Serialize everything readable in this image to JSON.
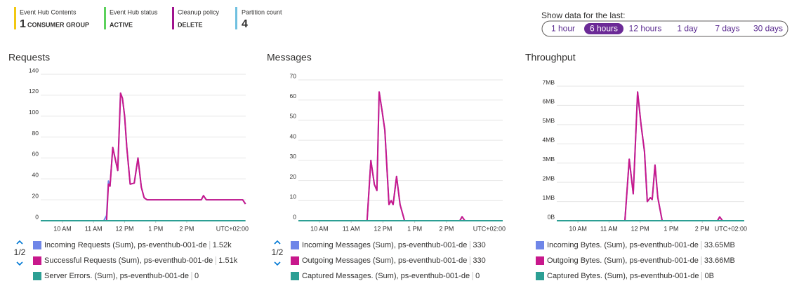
{
  "summary": [
    {
      "label": "Event Hub Contents",
      "value": "1",
      "detail": "CONSUMER GROUP",
      "color": "#f2c811"
    },
    {
      "label": "Event Hub status",
      "value": "ACTIVE",
      "color": "#5bd15b"
    },
    {
      "label": "Cleanup policy",
      "value": "DELETE",
      "color": "#a0138e"
    },
    {
      "label": "Partition count",
      "value": "4",
      "color": "#6fc0e0"
    }
  ],
  "time_range": {
    "label": "Show data for the last:",
    "options": [
      "1 hour",
      "6 hours",
      "12 hours",
      "1 day",
      "7 days",
      "30 days"
    ],
    "selected": 1
  },
  "chart_data": [
    {
      "type": "line",
      "title": "Requests",
      "grid": true,
      "pager": "1/2",
      "timezone_label": "UTC+02:00",
      "x": [
        9.3,
        11.33,
        11.42,
        11.48,
        11.53,
        11.62,
        11.78,
        11.87,
        11.93,
        12.0,
        12.07,
        12.18,
        12.31,
        12.43,
        12.54,
        12.63,
        12.72,
        14.47,
        14.54,
        14.63,
        15.8,
        15.89
      ],
      "xlim": [
        9.3,
        15.9
      ],
      "xticks": [
        {
          "value": 10,
          "label": "10 AM"
        },
        {
          "value": 11,
          "label": "11 AM"
        },
        {
          "value": 12,
          "label": "12 PM"
        },
        {
          "value": 13,
          "label": "1 PM"
        },
        {
          "value": 14,
          "label": "2 PM"
        }
      ],
      "ylim": [
        0,
        140
      ],
      "yticks": [
        0,
        20,
        40,
        60,
        80,
        100,
        120,
        140
      ],
      "series": [
        {
          "name": "Incoming Requests (Sum), ps-eventhub-001-de",
          "total": "1.52k",
          "color": "#6f86e8",
          "values": [
            0,
            0,
            5,
            38,
            33,
            70,
            48,
            122,
            117,
            100,
            70,
            35,
            36,
            60,
            32,
            22,
            20,
            20,
            24,
            20,
            20,
            16
          ]
        },
        {
          "name": "Successful Requests (Sum), ps-eventhub-001-de",
          "total": "1.51k",
          "color": "#c8188c",
          "values": [
            0,
            0,
            0,
            35,
            33,
            70,
            48,
            122,
            117,
            100,
            70,
            35,
            36,
            60,
            32,
            22,
            20,
            20,
            24,
            20,
            20,
            16
          ]
        },
        {
          "name": "Server Errors. (Sum), ps-eventhub-001-de",
          "total": "0",
          "color": "#2c9f94",
          "values": [
            0,
            0,
            0,
            0,
            0,
            0,
            0,
            0,
            0,
            0,
            0,
            0,
            0,
            0,
            0,
            0,
            0,
            0,
            0,
            0,
            0,
            0
          ]
        }
      ]
    },
    {
      "type": "line",
      "title": "Messages",
      "grid": true,
      "pager": "1/2",
      "timezone_label": "UTC+02:00",
      "x": [
        9.34,
        11.5,
        11.62,
        11.73,
        11.81,
        11.88,
        11.97,
        12.06,
        12.19,
        12.26,
        12.32,
        12.43,
        12.54,
        12.68,
        14.42,
        14.49,
        14.58,
        15.77
      ],
      "xlim": [
        9.34,
        15.77
      ],
      "xticks": [
        {
          "value": 10,
          "label": "10 AM"
        },
        {
          "value": 11,
          "label": "11 AM"
        },
        {
          "value": 12,
          "label": "12 PM"
        },
        {
          "value": 13,
          "label": "1 PM"
        },
        {
          "value": 14,
          "label": "2 PM"
        }
      ],
      "ylim": [
        0,
        70
      ],
      "yticks": [
        0,
        10,
        20,
        30,
        40,
        50,
        60,
        70
      ],
      "series": [
        {
          "name": "Incoming Messages (Sum), ps-eventhub-001-de",
          "total": "330",
          "color": "#6f86e8",
          "values": [
            0,
            0,
            30,
            18,
            15,
            64,
            55,
            45,
            8,
            10,
            8,
            22,
            8,
            0,
            0,
            2,
            0,
            0
          ]
        },
        {
          "name": "Outgoing Messages (Sum), ps-eventhub-001-de",
          "total": "330",
          "color": "#c8188c",
          "values": [
            0,
            0,
            30,
            18,
            15,
            64,
            55,
            45,
            8,
            10,
            8,
            22,
            8,
            0,
            0,
            2,
            0,
            0
          ]
        },
        {
          "name": "Captured Messages. (Sum), ps-eventhub-001-de",
          "total": "0",
          "color": "#2c9f94",
          "values": [
            0,
            0,
            0,
            0,
            0,
            0,
            0,
            0,
            0,
            0,
            0,
            0,
            0,
            0,
            0,
            0,
            0,
            0
          ]
        }
      ]
    },
    {
      "type": "line",
      "title": "Throughput",
      "grid": true,
      "timezone_label": "UTC+02:00",
      "x": [
        9.32,
        11.51,
        11.65,
        11.78,
        11.92,
        12.03,
        12.14,
        12.23,
        12.33,
        12.39,
        12.48,
        12.57,
        12.71,
        14.49,
        14.56,
        14.65,
        15.35
      ],
      "xlim": [
        9.32,
        15.35
      ],
      "xticks": [
        {
          "value": 10,
          "label": "10 AM"
        },
        {
          "value": 11,
          "label": "11 AM"
        },
        {
          "value": 12,
          "label": "12 PM"
        },
        {
          "value": 13,
          "label": "1 PM"
        },
        {
          "value": 14,
          "label": "2 PM"
        }
      ],
      "ylim": [
        0,
        7
      ],
      "yticks": [
        {
          "value": 0,
          "label": "0B"
        },
        {
          "value": 1,
          "label": "1MB"
        },
        {
          "value": 2,
          "label": "2MB"
        },
        {
          "value": 3,
          "label": "3MB"
        },
        {
          "value": 4,
          "label": "4MB"
        },
        {
          "value": 5,
          "label": "5MB"
        },
        {
          "value": 6,
          "label": "6MB"
        },
        {
          "value": 7,
          "label": "7MB"
        }
      ],
      "series": [
        {
          "name": "Incoming Bytes. (Sum), ps-eventhub-001-de",
          "total": "33.65MB",
          "color": "#6f86e8",
          "values": [
            0,
            0,
            3.2,
            1.4,
            6.7,
            5.0,
            3.6,
            1.0,
            1.2,
            1.1,
            2.9,
            1.2,
            0,
            0,
            0.2,
            0,
            0
          ]
        },
        {
          "name": "Outgoing Bytes. (Sum), ps-eventhub-001-de",
          "total": "33.66MB",
          "color": "#c8188c",
          "values": [
            0,
            0,
            3.2,
            1.4,
            6.7,
            5.0,
            3.6,
            1.0,
            1.2,
            1.1,
            2.9,
            1.2,
            0,
            0,
            0.2,
            0,
            0
          ]
        },
        {
          "name": "Captured Bytes. (Sum), ps-eventhub-001-de",
          "total": "0B",
          "color": "#2c9f94",
          "values": [
            0,
            0,
            0,
            0,
            0,
            0,
            0,
            0,
            0,
            0,
            0,
            0,
            0,
            0,
            0,
            0,
            0
          ]
        }
      ]
    }
  ]
}
